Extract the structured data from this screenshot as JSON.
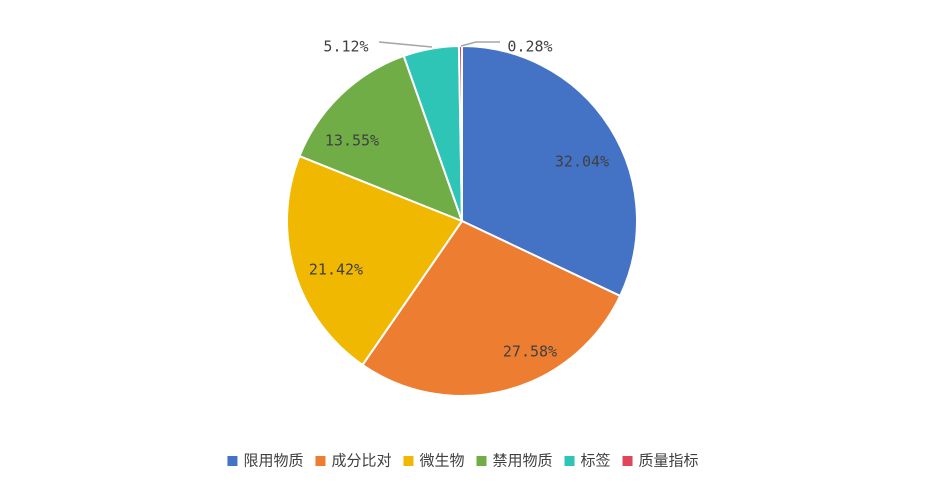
{
  "chart_data": {
    "type": "pie",
    "title": "",
    "legend_position": "bottom",
    "series": [
      {
        "name": "限用物质",
        "value": 32.04,
        "label": "32.04%",
        "color": "#4472C4"
      },
      {
        "name": "成分比对",
        "value": 27.58,
        "label": "27.58%",
        "color": "#ED7D31"
      },
      {
        "name": "微生物",
        "value": 21.42,
        "label": "21.42%",
        "color": "#F0B800"
      },
      {
        "name": "禁用物质",
        "value": 13.55,
        "label": "13.55%",
        "color": "#70AD47"
      },
      {
        "name": "标签",
        "value": 5.12,
        "label": "5.12%",
        "color": "#2EC4B6"
      },
      {
        "name": "质量指标",
        "value": 0.28,
        "label": "0.28%",
        "color": "#E0455A"
      }
    ]
  }
}
